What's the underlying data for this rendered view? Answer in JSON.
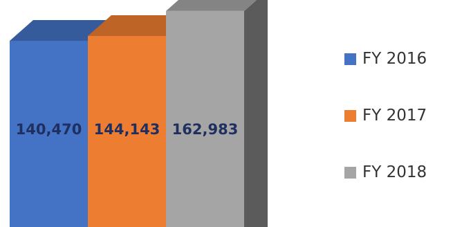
{
  "chart_data": {
    "type": "bar",
    "categories": [
      "FY 2016",
      "FY 2017",
      "FY 2018"
    ],
    "values": [
      140470,
      144143,
      162983
    ],
    "data_labels": [
      "140,470",
      "144,143",
      "162,983"
    ],
    "title": "",
    "xlabel": "",
    "ylabel": "",
    "ylim": [
      0,
      165000
    ],
    "grid": false,
    "legend": "right",
    "style": "3d-columns",
    "series": [
      {
        "name": "FY 2016",
        "color": "#4472C4"
      },
      {
        "name": "FY 2017",
        "color": "#ED7D31"
      },
      {
        "name": "FY 2018",
        "color": "#A5A5A5"
      }
    ],
    "label_color": "#1F2F5F"
  }
}
